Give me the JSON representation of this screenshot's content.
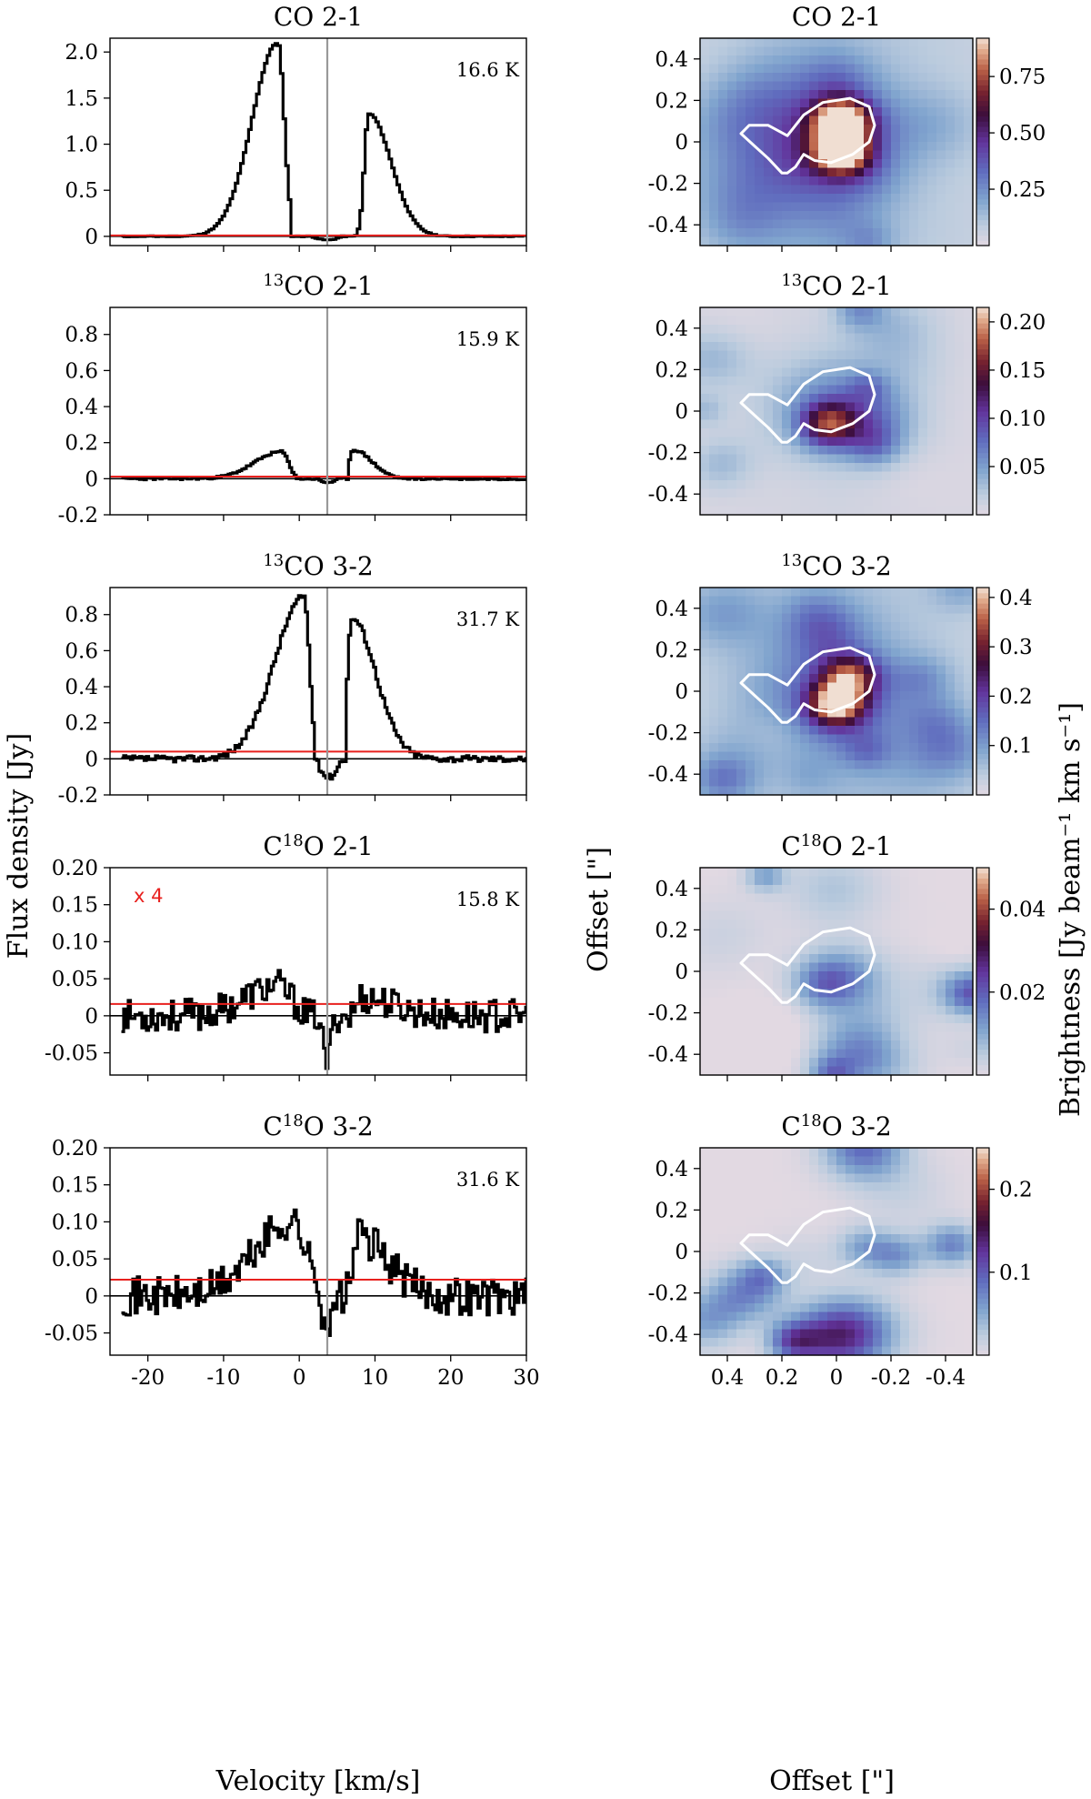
{
  "figure": {
    "ylabel_left": "Flux density [Jy]",
    "ylabel_right": "Offset [\"]",
    "xlabel_left": "Velocity [km/s]",
    "xlabel_right": "Offset [\"]",
    "cbar_label": "Brightness [Jy beam⁻¹ km s⁻¹]"
  },
  "colors": {
    "spectrum": "#000000",
    "noise_line": "#e8201e",
    "zero_line": "#000000",
    "vsys_line": "#999999",
    "contour": "#ffffff"
  },
  "chart_data": [
    {
      "type": "line",
      "panel": "spectrum",
      "title_main": "CO 2-1",
      "title_sup": "",
      "title_rest": "",
      "temperature": "16.6 K",
      "multiplier": "",
      "xlim": [
        -25,
        30
      ],
      "ylim": [
        -0.1,
        2.15
      ],
      "xticks": [
        "-20",
        "-10",
        "0",
        "10",
        "20",
        "30"
      ],
      "yticks": [
        0,
        0.5,
        1.0,
        1.5,
        2.0
      ],
      "ytick_labels": [
        "0",
        "0.5",
        "1.0",
        "1.5",
        "2.0"
      ],
      "noise_level": 0.01,
      "vsys": 3.7,
      "profile": {
        "noise": 0.005,
        "seed": 11,
        "blue_center": -3,
        "blue_peak": 2.1,
        "blue_width": 4.8,
        "blue_edge": 1.2,
        "red_start": 6.8,
        "red_center": 9,
        "red_peak": 1.33,
        "red_width": 4.2,
        "absorption": [
          1.5,
          5.5,
          -0.04
        ]
      }
    },
    {
      "type": "line",
      "panel": "spectrum",
      "title_main": "CO 2-1",
      "title_sup": "13",
      "title_rest": "",
      "temperature": "15.9 K",
      "multiplier": "",
      "xlim": [
        -25,
        30
      ],
      "ylim": [
        -0.2,
        0.95
      ],
      "xticks": [
        "-20",
        "-10",
        "0",
        "10",
        "20",
        "30"
      ],
      "yticks": [
        -0.2,
        0,
        0.2,
        0.4,
        0.6,
        0.8
      ],
      "ytick_labels": [
        "-0.2",
        "0",
        "0.2",
        "0.4",
        "0.6",
        "0.8"
      ],
      "noise_level": 0.012,
      "vsys": 3.7,
      "profile": {
        "noise": 0.006,
        "seed": 23,
        "blue_center": -2.5,
        "blue_peak": 0.15,
        "blue_width": 5,
        "blue_edge": 1.3,
        "red_start": 6.4,
        "red_center": 7,
        "red_peak": 0.16,
        "red_width": 3.4,
        "absorption": [
          2.0,
          5.2,
          -0.02
        ]
      }
    },
    {
      "type": "line",
      "panel": "spectrum",
      "title_main": "CO 3-2",
      "title_sup": "13",
      "title_rest": "",
      "temperature": "31.7 K",
      "multiplier": "",
      "xlim": [
        -25,
        30
      ],
      "ylim": [
        -0.2,
        0.95
      ],
      "xticks": [
        "-20",
        "-10",
        "0",
        "10",
        "20",
        "30"
      ],
      "yticks": [
        -0.2,
        0,
        0.2,
        0.4,
        0.6,
        0.8
      ],
      "ytick_labels": [
        "-0.2",
        "0",
        "0.2",
        "0.4",
        "0.6",
        "0.8"
      ],
      "noise_level": 0.04,
      "vsys": 3.7,
      "profile": {
        "noise": 0.018,
        "seed": 37,
        "blue_center": 0.5,
        "blue_peak": 0.9,
        "blue_width": 5.5,
        "blue_edge": 1.0,
        "red_start": 6.0,
        "red_center": 6.8,
        "red_peak": 0.78,
        "red_width": 4.5,
        "absorption": [
          2.0,
          5.5,
          -0.1
        ]
      }
    },
    {
      "type": "line",
      "panel": "spectrum",
      "title_main": "C",
      "title_sup": "18",
      "title_rest": "O 2-1",
      "temperature": "15.8 K",
      "multiplier": "x 4",
      "xlim": [
        -25,
        30
      ],
      "ylim": [
        -0.08,
        0.2
      ],
      "xticks": [
        "-20",
        "-10",
        "0",
        "10",
        "20",
        "30"
      ],
      "yticks": [
        -0.05,
        0,
        0.05,
        0.1,
        0.15,
        0.2
      ],
      "ytick_labels": [
        "-0.05",
        "0",
        "0.05",
        "0.10",
        "0.15",
        "0.20"
      ],
      "noise_level": 0.016,
      "vsys": 3.7,
      "profile": {
        "noise": 0.022,
        "seed": 53,
        "blue_center": -3,
        "blue_peak": 0.04,
        "blue_width": 6,
        "blue_edge": 2.5,
        "red_start": 5.5,
        "red_center": 8,
        "red_peak": 0.025,
        "red_width": 6,
        "absorption": [
          2.5,
          4.5,
          -0.06
        ]
      }
    },
    {
      "type": "line",
      "panel": "spectrum",
      "title_main": "C",
      "title_sup": "18",
      "title_rest": "O 3-2",
      "temperature": "31.6 K",
      "multiplier": "",
      "xlim": [
        -25,
        30
      ],
      "ylim": [
        -0.08,
        0.2
      ],
      "xticks": [
        "-20",
        "-10",
        "0",
        "10",
        "20",
        "30"
      ],
      "yticks": [
        -0.05,
        0,
        0.05,
        0.1,
        0.15,
        0.2
      ],
      "ytick_labels": [
        "-0.05",
        "0",
        "0.05",
        "0.10",
        "0.15",
        "0.20"
      ],
      "noise_level": 0.022,
      "vsys": 3.7,
      "profile": {
        "noise": 0.026,
        "seed": 71,
        "blue_center": -1,
        "blue_peak": 0.1,
        "blue_width": 7,
        "blue_edge": 2.5,
        "red_start": 5.0,
        "red_center": 7.5,
        "red_peak": 0.08,
        "red_width": 5.5,
        "absorption": [
          2.5,
          5.0,
          -0.04
        ]
      }
    },
    {
      "type": "heatmap",
      "panel": "map",
      "title_main": "CO 2-1",
      "title_sup": "",
      "title_rest": "",
      "xlim": [
        0.5,
        -0.5
      ],
      "ylim": [
        -0.5,
        0.5
      ],
      "xticks": [
        0.4,
        0.2,
        0,
        -0.2,
        -0.4
      ],
      "xtick_labels": [
        "0.4",
        "0.2",
        "0",
        "-0.2",
        "-0.4"
      ],
      "yticks": [
        0.4,
        0.2,
        0,
        -0.2,
        -0.4
      ],
      "ytick_labels": [
        "0.4",
        "0.2",
        "0",
        "-0.2",
        "-0.4"
      ],
      "vmin": 0.0,
      "vmax": 0.92,
      "cbar_ticks": [
        0.25,
        0.5,
        0.75
      ],
      "cbar_labels": [
        "0.25",
        "0.50",
        "0.75"
      ],
      "map": {
        "background": 0.13,
        "noise": 0.05,
        "blobs": [
          [
            -0.02,
            0.1,
            0.07,
            0.78
          ],
          [
            -0.02,
            -0.05,
            0.07,
            0.72
          ],
          [
            0.02,
            0.03,
            0.17,
            0.32
          ],
          [
            0.2,
            -0.2,
            0.22,
            0.16
          ],
          [
            0.0,
            0.3,
            0.1,
            0.12
          ]
        ],
        "seed": 5
      }
    },
    {
      "type": "heatmap",
      "panel": "map",
      "title_main": "CO 2-1",
      "title_sup": "13",
      "title_rest": "",
      "xlim": [
        0.5,
        -0.5
      ],
      "ylim": [
        -0.5,
        0.5
      ],
      "xticks": [
        0.4,
        0.2,
        0,
        -0.2,
        -0.4
      ],
      "xtick_labels": [
        "0.4",
        "0.2",
        "0",
        "-0.2",
        "-0.4"
      ],
      "yticks": [
        0.4,
        0.2,
        0,
        -0.2,
        -0.4
      ],
      "ytick_labels": [
        "0.4",
        "0.2",
        "0",
        "-0.2",
        "-0.4"
      ],
      "vmin": 0.0,
      "vmax": 0.215,
      "cbar_ticks": [
        0.05,
        0.1,
        0.15,
        0.2
      ],
      "cbar_labels": [
        "0.05",
        "0.10",
        "0.15",
        "0.20"
      ],
      "map": {
        "background": 0.01,
        "noise": 0.028,
        "blobs": [
          [
            0.03,
            -0.06,
            0.07,
            0.11
          ],
          [
            0.02,
            0.02,
            0.16,
            0.05
          ]
        ],
        "seed": 9
      }
    },
    {
      "type": "heatmap",
      "panel": "map",
      "title_main": "CO 3-2",
      "title_sup": "13",
      "title_rest": "",
      "xlim": [
        0.5,
        -0.5
      ],
      "ylim": [
        -0.5,
        0.5
      ],
      "xticks": [
        0.4,
        0.2,
        0,
        -0.2,
        -0.4
      ],
      "xtick_labels": [
        "0.4",
        "0.2",
        "0",
        "-0.2",
        "-0.4"
      ],
      "yticks": [
        0.4,
        0.2,
        0,
        -0.2,
        -0.4
      ],
      "ytick_labels": [
        "0.4",
        "0.2",
        "0",
        "-0.2",
        "-0.4"
      ],
      "vmin": 0.0,
      "vmax": 0.42,
      "cbar_ticks": [
        0.1,
        0.2,
        0.3,
        0.4
      ],
      "cbar_labels": [
        "0.1",
        "0.2",
        "0.3",
        "0.4"
      ],
      "map": {
        "background": 0.06,
        "noise": 0.05,
        "blobs": [
          [
            0.0,
            -0.06,
            0.07,
            0.3
          ],
          [
            -0.05,
            0.07,
            0.07,
            0.22
          ],
          [
            0.02,
            0.0,
            0.2,
            0.1
          ],
          [
            0.05,
            0.3,
            0.1,
            0.08
          ]
        ],
        "seed": 17
      }
    },
    {
      "type": "heatmap",
      "panel": "map",
      "title_main": "C",
      "title_sup": "18",
      "title_rest": "O 2-1",
      "xlim": [
        0.5,
        -0.5
      ],
      "ylim": [
        -0.5,
        0.5
      ],
      "xticks": [
        0.4,
        0.2,
        0,
        -0.2,
        -0.4
      ],
      "xtick_labels": [
        "0.4",
        "0.2",
        "0",
        "-0.2",
        "-0.4"
      ],
      "yticks": [
        0.4,
        0.2,
        0,
        -0.2,
        -0.4
      ],
      "ytick_labels": [
        "0.4",
        "0.2",
        "0",
        "-0.2",
        "-0.4"
      ],
      "vmin": 0.0,
      "vmax": 0.05,
      "cbar_ticks": [
        0.02,
        0.04
      ],
      "cbar_labels": [
        "0.02",
        "0.04"
      ],
      "map": {
        "background": 0.0,
        "noise": 0.011,
        "blobs": [
          [
            0.05,
            -0.06,
            0.08,
            0.01
          ]
        ],
        "seed": 29
      }
    },
    {
      "type": "heatmap",
      "panel": "map",
      "title_main": "C",
      "title_sup": "18",
      "title_rest": "O 3-2",
      "xlim": [
        0.5,
        -0.5
      ],
      "ylim": [
        -0.5,
        0.5
      ],
      "xticks": [
        0.4,
        0.2,
        0,
        -0.2,
        -0.4
      ],
      "xtick_labels": [
        "0.4",
        "0.2",
        "0",
        "-0.2",
        "-0.4"
      ],
      "yticks": [
        0.4,
        0.2,
        0,
        -0.2,
        -0.4
      ],
      "ytick_labels": [
        "0.4",
        "0.2",
        "0",
        "-0.2",
        "-0.4"
      ],
      "vmin": 0.0,
      "vmax": 0.25,
      "cbar_ticks": [
        0.1,
        0.2
      ],
      "cbar_labels": [
        "0.1",
        "0.2"
      ],
      "map": {
        "background": 0.0,
        "noise": 0.05,
        "blobs": [
          [
            -0.1,
            0.02,
            0.07,
            0.05
          ]
        ],
        "seed": 41
      }
    }
  ]
}
